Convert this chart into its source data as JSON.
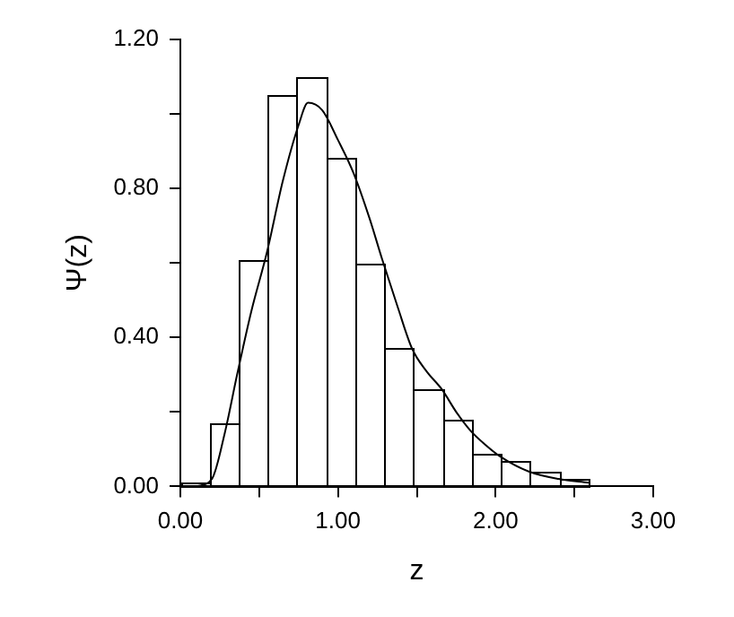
{
  "chart_data": {
    "type": "histogram",
    "xlabel": "z",
    "ylabel": "Ψ(z)",
    "xlim": [
      0,
      3
    ],
    "ylim": [
      0,
      1.2
    ],
    "xticks": [
      {
        "value": 0,
        "label": "0.00"
      },
      {
        "value": 0.5,
        "label": null
      },
      {
        "value": 1,
        "label": "1.00"
      },
      {
        "value": 1.5,
        "label": null
      },
      {
        "value": 2,
        "label": "2.00"
      },
      {
        "value": 2.5,
        "label": null
      },
      {
        "value": 3,
        "label": "3.00"
      }
    ],
    "yticks": [
      {
        "value": 0,
        "label": "0.00"
      },
      {
        "value": 0.2,
        "label": null
      },
      {
        "value": 0.4,
        "label": "0.40"
      },
      {
        "value": 0.6,
        "label": null
      },
      {
        "value": 0.8,
        "label": "0.80"
      },
      {
        "value": 1.0,
        "label": null
      },
      {
        "value": 1.2,
        "label": "1.20"
      }
    ],
    "grid": false,
    "legend": false,
    "color": "#000000",
    "bins": [
      0,
      0.185,
      0.37,
      0.555,
      0.74,
      0.925,
      1.11,
      1.295,
      1.48,
      1.665,
      1.85,
      2.035,
      2.22,
      2.405,
      2.59
    ],
    "values": [
      0.01,
      0.17,
      0.61,
      1.05,
      1.1,
      0.88,
      0.6,
      0.37,
      0.26,
      0.18,
      0.09,
      0.07,
      0.04,
      0.02
    ],
    "series": [
      {
        "type": "line",
        "color": "#000000",
        "x": [
          0.1,
          0.2,
          0.28,
          0.36,
          0.45,
          0.55,
          0.65,
          0.75,
          0.81,
          0.9,
          1.0,
          1.1,
          1.2,
          1.28,
          1.38,
          1.47,
          1.56,
          1.66,
          1.75,
          1.84,
          1.94,
          2.03,
          2.21,
          2.4,
          2.59
        ],
        "values": [
          0,
          0.02,
          0.14,
          0.3,
          0.47,
          0.63,
          0.82,
          0.97,
          1.03,
          1.01,
          0.93,
          0.84,
          0.72,
          0.61,
          0.48,
          0.37,
          0.31,
          0.26,
          0.2,
          0.15,
          0.11,
          0.08,
          0.04,
          0.02,
          0.01
        ]
      }
    ]
  }
}
